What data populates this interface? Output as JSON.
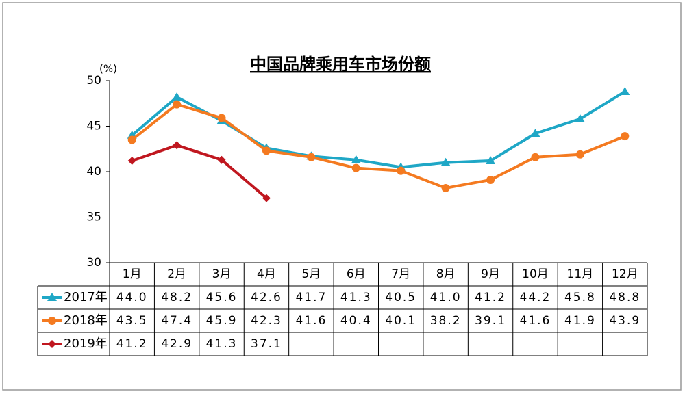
{
  "chart_data": {
    "type": "line",
    "title": "中国品牌乘用车市场份额",
    "y_unit": "(%)",
    "categories": [
      "1月",
      "2月",
      "3月",
      "4月",
      "5月",
      "6月",
      "7月",
      "8月",
      "9月",
      "10月",
      "11月",
      "12月"
    ],
    "ylim": [
      30,
      50
    ],
    "yticks": [
      30,
      35,
      40,
      45,
      50
    ],
    "grid": false,
    "series": [
      {
        "name": "2017年",
        "color": "#1fa7c6",
        "marker": "triangle",
        "values": [
          44.0,
          48.2,
          45.6,
          42.6,
          41.7,
          41.3,
          40.5,
          41.0,
          41.2,
          44.2,
          45.8,
          48.8
        ],
        "value_labels": [
          "44.0",
          "48.2",
          "45.6",
          "42.6",
          "41.7",
          "41.3",
          "40.5",
          "41.0",
          "41.2",
          "44.2",
          "45.8",
          "48.8"
        ]
      },
      {
        "name": "2018年",
        "color": "#f47a20",
        "marker": "circle",
        "values": [
          43.5,
          47.4,
          45.9,
          42.3,
          41.6,
          40.4,
          40.1,
          38.2,
          39.1,
          41.6,
          41.9,
          43.9
        ],
        "value_labels": [
          "43.5",
          "47.4",
          "45.9",
          "42.3",
          "41.6",
          "40.4",
          "40.1",
          "38.2",
          "39.1",
          "41.6",
          "41.9",
          "43.9"
        ]
      },
      {
        "name": "2019年",
        "color": "#c0171f",
        "marker": "diamond",
        "values": [
          41.2,
          42.9,
          41.3,
          37.1,
          null,
          null,
          null,
          null,
          null,
          null,
          null,
          null
        ],
        "value_labels": [
          "41.2",
          "42.9",
          "41.3",
          "37.1",
          null,
          null,
          null,
          null,
          null,
          null,
          null,
          null
        ]
      }
    ]
  }
}
